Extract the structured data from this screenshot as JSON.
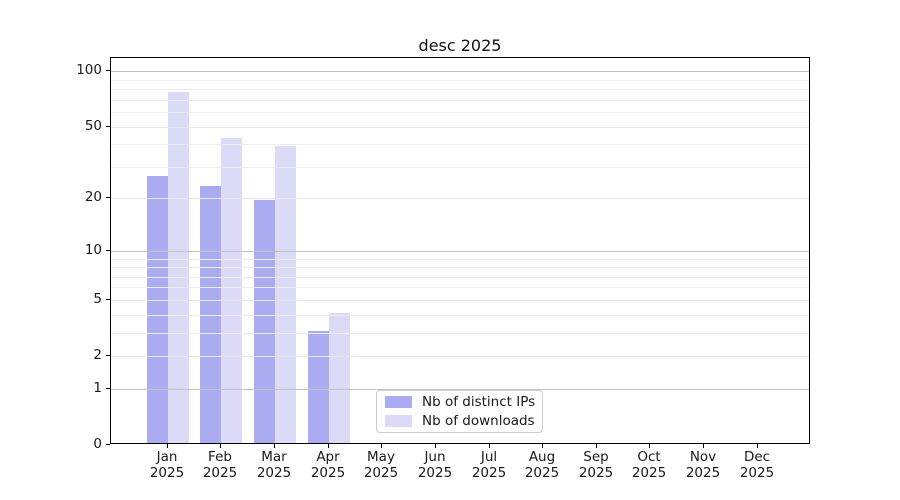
{
  "chart_data": {
    "type": "bar",
    "title": "desc 2025",
    "categories": [
      "Jan 2025",
      "Feb 2025",
      "Mar 2025",
      "Apr 2025",
      "May 2025",
      "Jun 2025",
      "Jul 2025",
      "Aug 2025",
      "Sep 2025",
      "Oct 2025",
      "Nov 2025",
      "Dec 2025"
    ],
    "x_tick_labels": {
      "months": [
        "Jan",
        "Feb",
        "Mar",
        "Apr",
        "May",
        "Jun",
        "Jul",
        "Aug",
        "Sep",
        "Oct",
        "Nov",
        "Dec"
      ],
      "year": "2025"
    },
    "series": [
      {
        "name": "Nb of distinct IPs",
        "color": "#ababf2",
        "values": [
          26,
          23,
          19,
          3,
          0,
          0,
          0,
          0,
          0,
          0,
          0,
          0
        ]
      },
      {
        "name": "Nb of downloads",
        "color": "#dbdbf8",
        "values": [
          75,
          42,
          38,
          4,
          0,
          0,
          0,
          0,
          0,
          0,
          0,
          0
        ]
      }
    ],
    "y_axis": {
      "scale": "log1p",
      "tick_values": [
        0,
        1,
        2,
        5,
        10,
        20,
        50,
        100
      ],
      "emphasized_gridline_values": [
        1,
        10,
        100
      ],
      "minor_gridline_values": [
        3,
        4,
        6,
        7,
        8,
        9,
        30,
        40,
        60,
        70,
        80,
        90
      ],
      "range": [
        0,
        118
      ]
    },
    "xlabel": "",
    "ylabel": "",
    "grid": "on",
    "legend": {
      "position": "lower center",
      "entries": [
        "Nb of distinct IPs",
        "Nb of downloads"
      ]
    },
    "colors": {
      "grid_minor": "#ececec",
      "grid_major": "#c3c3c3",
      "axis_spine": "#000000",
      "text": "#1a1a1a"
    }
  }
}
